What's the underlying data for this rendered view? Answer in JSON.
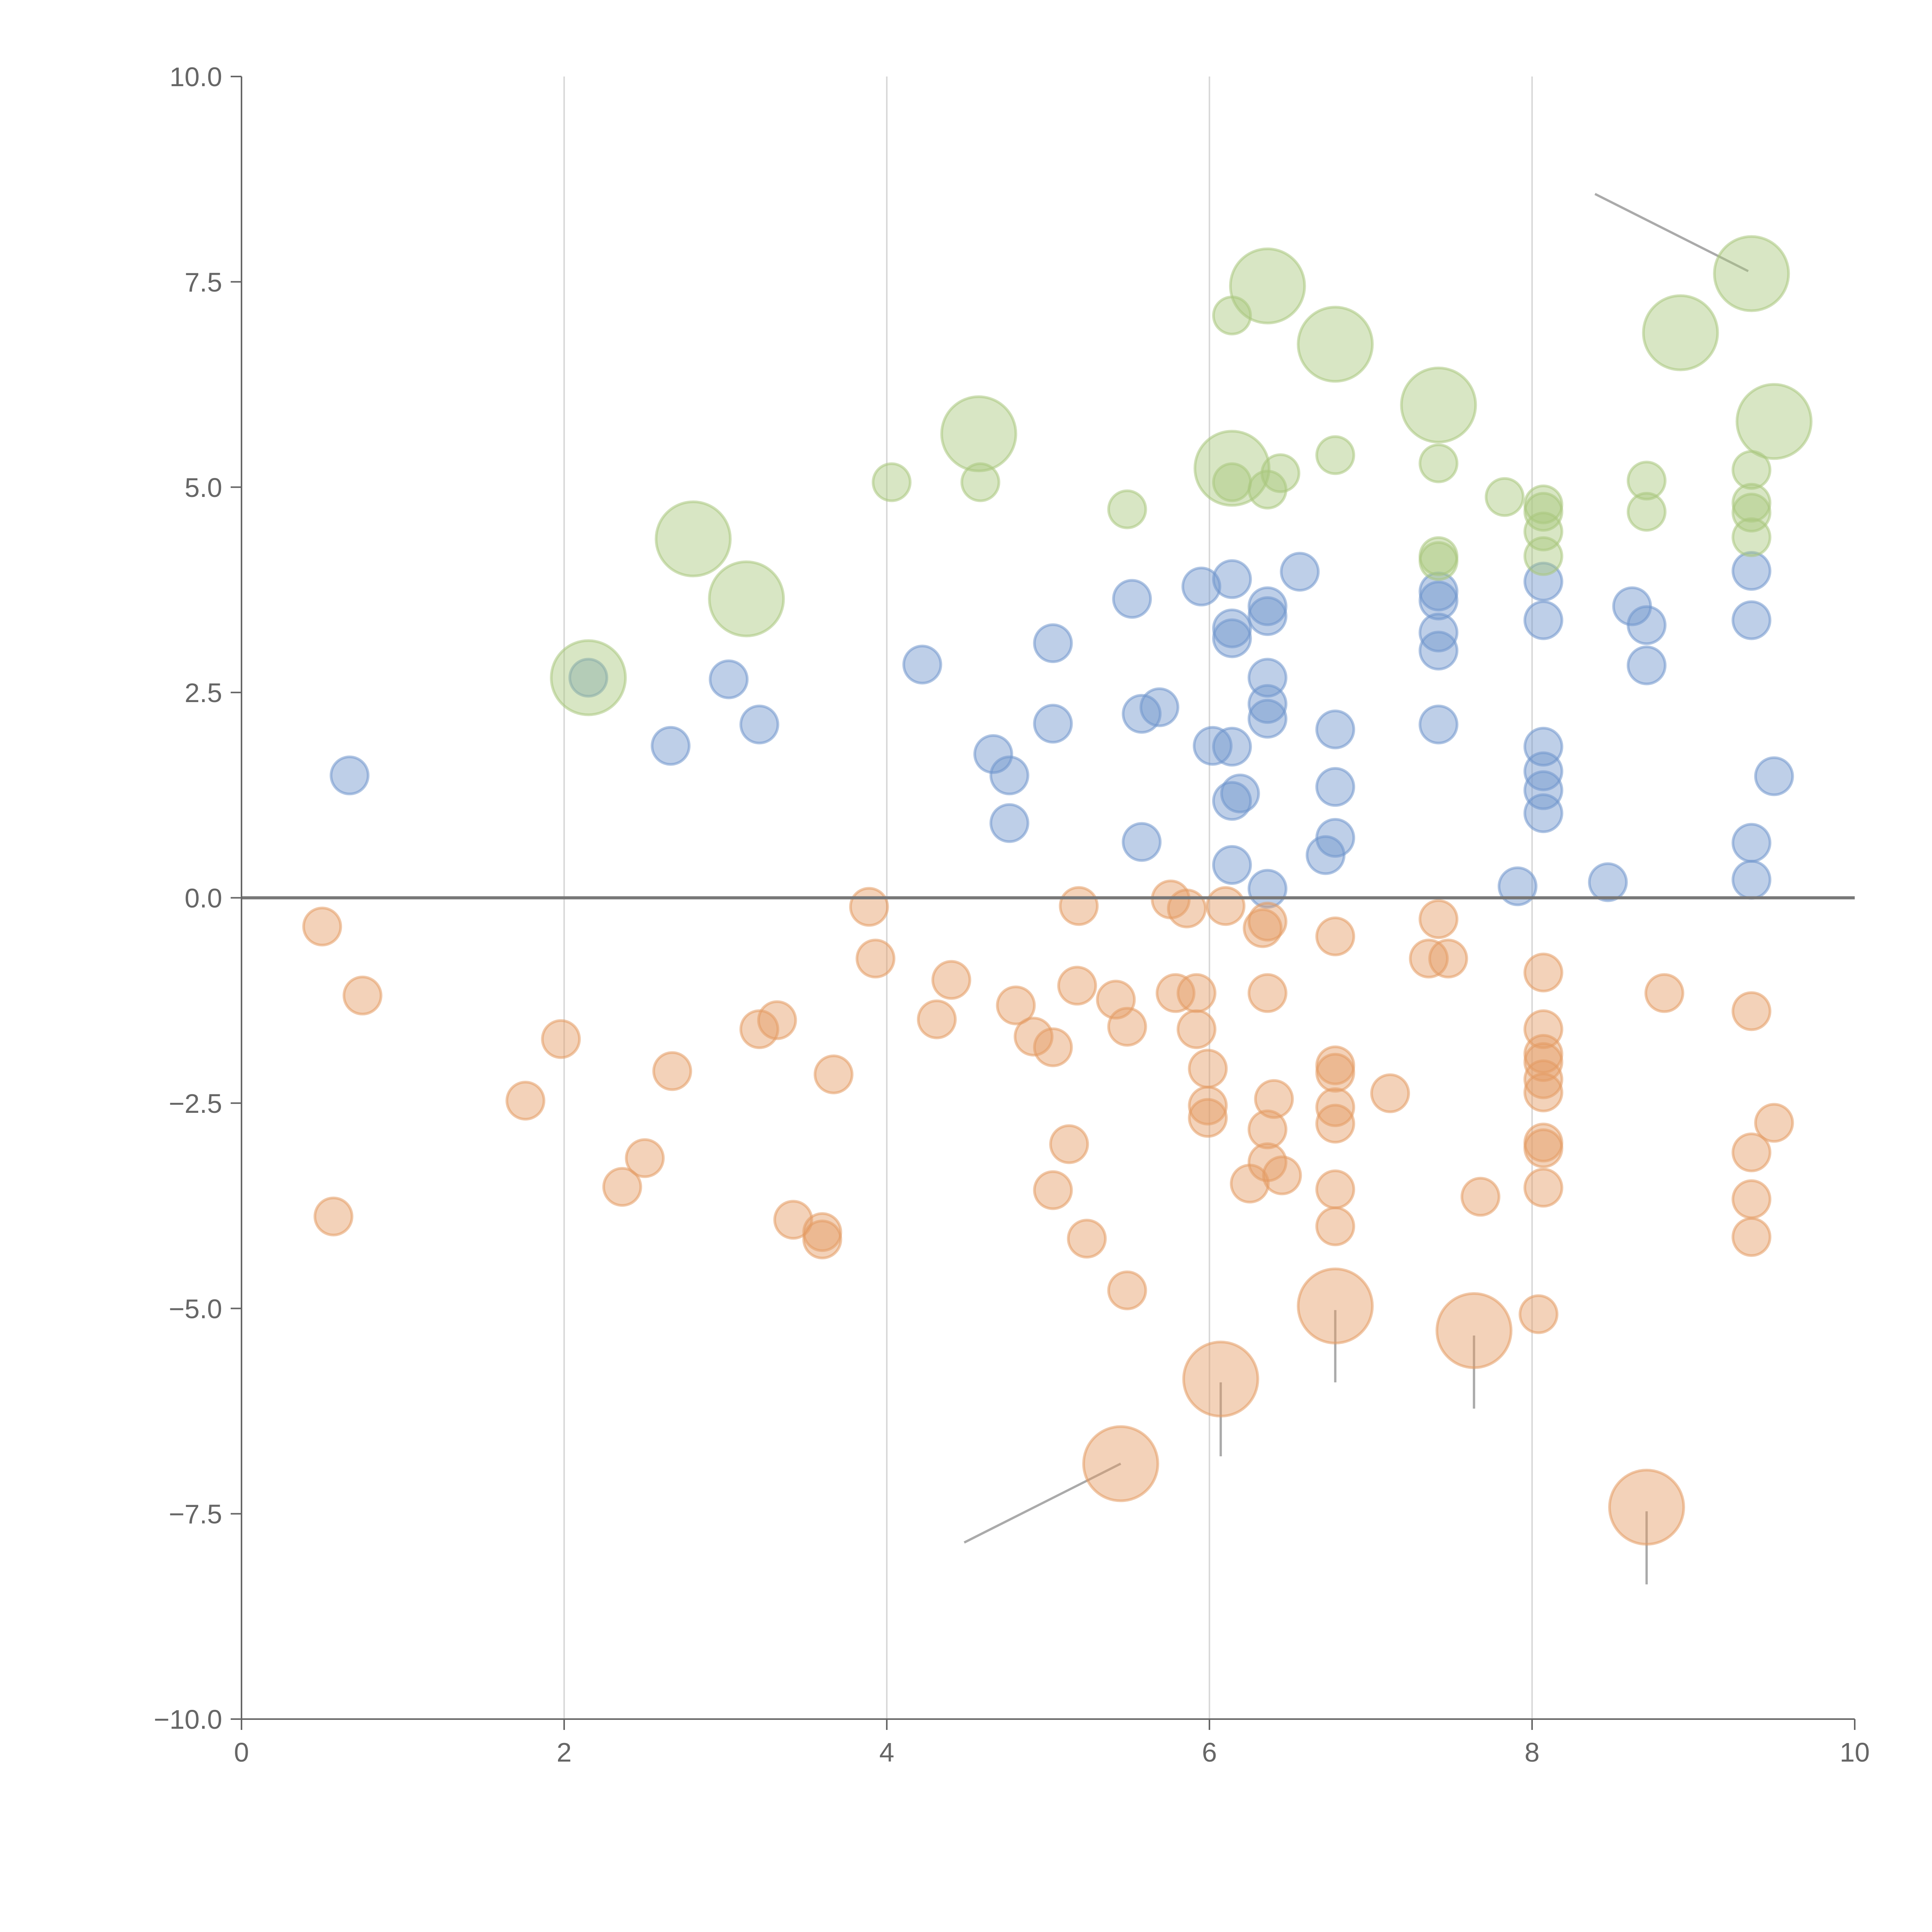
{
  "chart_data": {
    "type": "scatter",
    "title": "",
    "xlabel": "",
    "ylabel": "",
    "xlim": [
      0,
      10
    ],
    "ylim": [
      -10,
      10
    ],
    "grid": "vertical",
    "x_ticks": [
      "0",
      "2",
      "4",
      "6",
      "8",
      "10"
    ],
    "y_ticks": [
      "10.0",
      "7.5",
      "5.0",
      "2.5",
      "0.0",
      "−2.5",
      "−5.0",
      "−7.5",
      "−10.0"
    ],
    "colors": {
      "blue": "#6f95cc",
      "green": "#a9c77d",
      "orange": "#e49b63",
      "axis": "#666666",
      "grid": "#d9d9d9",
      "leader": "#aaaaaa"
    },
    "series": [
      {
        "name": "blue",
        "color": "#6f95cc",
        "points": [
          [
            0.67,
            1.49,
            1
          ],
          [
            2.15,
            2.68,
            1
          ],
          [
            2.66,
            1.85,
            1
          ],
          [
            3.02,
            2.66,
            1
          ],
          [
            3.21,
            2.11,
            1
          ],
          [
            4.22,
            2.84,
            1
          ],
          [
            4.66,
            1.75,
            1
          ],
          [
            4.76,
            1.49,
            1
          ],
          [
            4.76,
            0.91,
            1
          ],
          [
            5.03,
            3.1,
            1
          ],
          [
            5.03,
            2.12,
            1
          ],
          [
            5.52,
            3.64,
            1
          ],
          [
            5.58,
            2.24,
            1
          ],
          [
            5.69,
            2.32,
            1
          ],
          [
            5.58,
            0.68,
            1
          ],
          [
            5.95,
            3.79,
            1
          ],
          [
            6.02,
            1.85,
            1
          ],
          [
            6.14,
            3.88,
            1
          ],
          [
            6.14,
            3.28,
            1
          ],
          [
            6.14,
            3.16,
            1
          ],
          [
            6.14,
            1.84,
            1
          ],
          [
            6.14,
            1.18,
            1
          ],
          [
            6.19,
            1.27,
            1
          ],
          [
            6.14,
            0.4,
            1
          ],
          [
            6.36,
            3.55,
            1
          ],
          [
            6.36,
            3.43,
            1
          ],
          [
            6.36,
            2.68,
            1
          ],
          [
            6.36,
            2.36,
            1
          ],
          [
            6.36,
            2.18,
            1
          ],
          [
            6.36,
            0.11,
            1
          ],
          [
            6.56,
            3.97,
            1
          ],
          [
            6.72,
            0.52,
            1
          ],
          [
            6.78,
            2.05,
            1
          ],
          [
            6.78,
            1.35,
            1
          ],
          [
            6.78,
            0.73,
            1
          ],
          [
            7.42,
            3.73,
            1
          ],
          [
            7.42,
            3.62,
            1
          ],
          [
            7.42,
            3.23,
            1
          ],
          [
            7.42,
            3.01,
            1
          ],
          [
            7.42,
            2.11,
            1
          ],
          [
            7.91,
            0.14,
            1
          ],
          [
            8.07,
            3.85,
            1
          ],
          [
            8.07,
            3.38,
            1
          ],
          [
            8.07,
            1.84,
            1
          ],
          [
            8.07,
            1.54,
            1
          ],
          [
            8.07,
            1.31,
            1
          ],
          [
            8.07,
            1.03,
            1
          ],
          [
            8.47,
            0.19,
            1
          ],
          [
            8.62,
            3.55,
            1
          ],
          [
            8.71,
            3.32,
            1
          ],
          [
            8.71,
            2.83,
            1
          ],
          [
            9.36,
            3.98,
            1
          ],
          [
            9.36,
            3.38,
            1
          ],
          [
            9.36,
            0.67,
            1
          ],
          [
            9.36,
            0.22,
            1
          ],
          [
            9.5,
            1.48,
            1
          ]
        ]
      },
      {
        "name": "green",
        "color": "#a9c77d",
        "points": [
          [
            4.03,
            5.06,
            1
          ],
          [
            4.58,
            5.06,
            1
          ],
          [
            5.49,
            4.73,
            1
          ],
          [
            6.14,
            7.09,
            1
          ],
          [
            6.14,
            5.06,
            1
          ],
          [
            6.36,
            4.97,
            1
          ],
          [
            6.44,
            5.17,
            1
          ],
          [
            6.78,
            5.39,
            1
          ],
          [
            7.42,
            5.29,
            1
          ],
          [
            7.42,
            4.16,
            1
          ],
          [
            7.42,
            4.1,
            1
          ],
          [
            7.83,
            4.88,
            1
          ],
          [
            8.07,
            4.79,
            1
          ],
          [
            8.07,
            4.7,
            1
          ],
          [
            8.07,
            4.46,
            1
          ],
          [
            8.07,
            4.16,
            1
          ],
          [
            8.71,
            5.08,
            1
          ],
          [
            8.71,
            4.7,
            1
          ],
          [
            9.36,
            5.21,
            1
          ],
          [
            9.36,
            4.81,
            1
          ],
          [
            9.36,
            4.69,
            1
          ],
          [
            9.36,
            4.39,
            1
          ],
          [
            2.15,
            2.68,
            4
          ],
          [
            2.8,
            4.37,
            4
          ],
          [
            3.13,
            3.64,
            4
          ],
          [
            4.57,
            5.65,
            4
          ],
          [
            6.14,
            5.23,
            4
          ],
          [
            6.36,
            7.45,
            4
          ],
          [
            6.78,
            6.74,
            4
          ],
          [
            7.42,
            6.0,
            4
          ],
          [
            8.92,
            6.88,
            4
          ],
          [
            9.36,
            7.6,
            4
          ],
          [
            9.5,
            5.8,
            4
          ]
        ]
      },
      {
        "name": "orange",
        "color": "#e49b63",
        "points": [
          [
            0.5,
            -0.35,
            1
          ],
          [
            0.75,
            -1.19,
            1
          ],
          [
            0.57,
            -3.88,
            1
          ],
          [
            1.76,
            -2.47,
            1
          ],
          [
            1.98,
            -1.72,
            1
          ],
          [
            2.36,
            -3.52,
            1
          ],
          [
            2.5,
            -3.17,
            1
          ],
          [
            2.67,
            -2.11,
            1
          ],
          [
            3.21,
            -1.6,
            1
          ],
          [
            3.32,
            -1.49,
            1
          ],
          [
            3.42,
            -3.92,
            1
          ],
          [
            3.6,
            -4.07,
            1
          ],
          [
            3.6,
            -4.16,
            1
          ],
          [
            3.67,
            -2.15,
            1
          ],
          [
            3.89,
            -0.11,
            1
          ],
          [
            3.93,
            -0.74,
            1
          ],
          [
            4.31,
            -1.48,
            1
          ],
          [
            4.4,
            -1.0,
            1
          ],
          [
            4.8,
            -1.31,
            1
          ],
          [
            4.91,
            -1.69,
            1
          ],
          [
            5.03,
            -1.82,
            1
          ],
          [
            5.03,
            -3.56,
            1
          ],
          [
            5.13,
            -3.0,
            1
          ],
          [
            5.18,
            -1.07,
            1
          ],
          [
            5.19,
            -0.1,
            1
          ],
          [
            5.24,
            -4.15,
            1
          ],
          [
            5.42,
            -1.24,
            1
          ],
          [
            5.49,
            -1.57,
            1
          ],
          [
            5.49,
            -4.78,
            1
          ],
          [
            5.76,
            -0.02,
            1
          ],
          [
            5.79,
            -1.16,
            1
          ],
          [
            5.86,
            -0.13,
            1
          ],
          [
            5.92,
            -1.16,
            1
          ],
          [
            5.92,
            -1.6,
            1
          ],
          [
            5.99,
            -2.08,
            1
          ],
          [
            5.99,
            -2.53,
            1
          ],
          [
            5.99,
            -2.68,
            1
          ],
          [
            6.1,
            -0.1,
            1
          ],
          [
            6.25,
            -3.48,
            1
          ],
          [
            6.33,
            -0.37,
            1
          ],
          [
            6.36,
            -0.29,
            1
          ],
          [
            6.36,
            -1.16,
            1
          ],
          [
            6.36,
            -2.82,
            1
          ],
          [
            6.36,
            -3.22,
            1
          ],
          [
            6.4,
            -2.45,
            1
          ],
          [
            6.45,
            -3.38,
            1
          ],
          [
            6.78,
            -0.47,
            1
          ],
          [
            6.78,
            -2.04,
            1
          ],
          [
            6.78,
            -2.13,
            1
          ],
          [
            6.78,
            -2.55,
            1
          ],
          [
            6.78,
            -2.75,
            1
          ],
          [
            6.78,
            -3.55,
            1
          ],
          [
            6.78,
            -4.0,
            1
          ],
          [
            7.12,
            -2.38,
            1
          ],
          [
            7.36,
            -0.74,
            1
          ],
          [
            7.42,
            -0.26,
            1
          ],
          [
            7.48,
            -0.74,
            1
          ],
          [
            7.68,
            -3.64,
            1
          ],
          [
            8.04,
            -5.07,
            1
          ],
          [
            8.07,
            -0.91,
            1
          ],
          [
            8.07,
            -1.6,
            1
          ],
          [
            8.07,
            -1.9,
            1
          ],
          [
            8.07,
            -2.0,
            1
          ],
          [
            8.07,
            -2.21,
            1
          ],
          [
            8.07,
            -2.37,
            1
          ],
          [
            8.07,
            -2.98,
            1
          ],
          [
            8.07,
            -3.05,
            1
          ],
          [
            8.07,
            -3.53,
            1
          ],
          [
            8.82,
            -1.16,
            1
          ],
          [
            9.36,
            -1.38,
            1
          ],
          [
            9.36,
            -3.1,
            1
          ],
          [
            9.36,
            -3.67,
            1
          ],
          [
            9.36,
            -4.13,
            1
          ],
          [
            9.5,
            -2.74,
            1
          ],
          [
            5.45,
            -6.89,
            4
          ],
          [
            6.07,
            -5.86,
            4
          ],
          [
            6.78,
            -4.97,
            4
          ],
          [
            7.64,
            -5.27,
            4
          ],
          [
            8.71,
            -7.42,
            4
          ]
        ]
      }
    ],
    "leader_lines": [
      [
        [
          5.45,
          -6.89
        ],
        [
          4.48,
          -7.85
        ]
      ],
      [
        [
          6.07,
          -5.9
        ],
        [
          6.07,
          -6.8
        ]
      ],
      [
        [
          6.78,
          -5.02
        ],
        [
          6.78,
          -5.9
        ]
      ],
      [
        [
          7.64,
          -5.33
        ],
        [
          7.64,
          -6.22
        ]
      ],
      [
        [
          8.71,
          -7.47
        ],
        [
          8.71,
          -8.36
        ]
      ],
      [
        [
          9.34,
          7.63
        ],
        [
          8.39,
          8.57
        ]
      ]
    ]
  }
}
